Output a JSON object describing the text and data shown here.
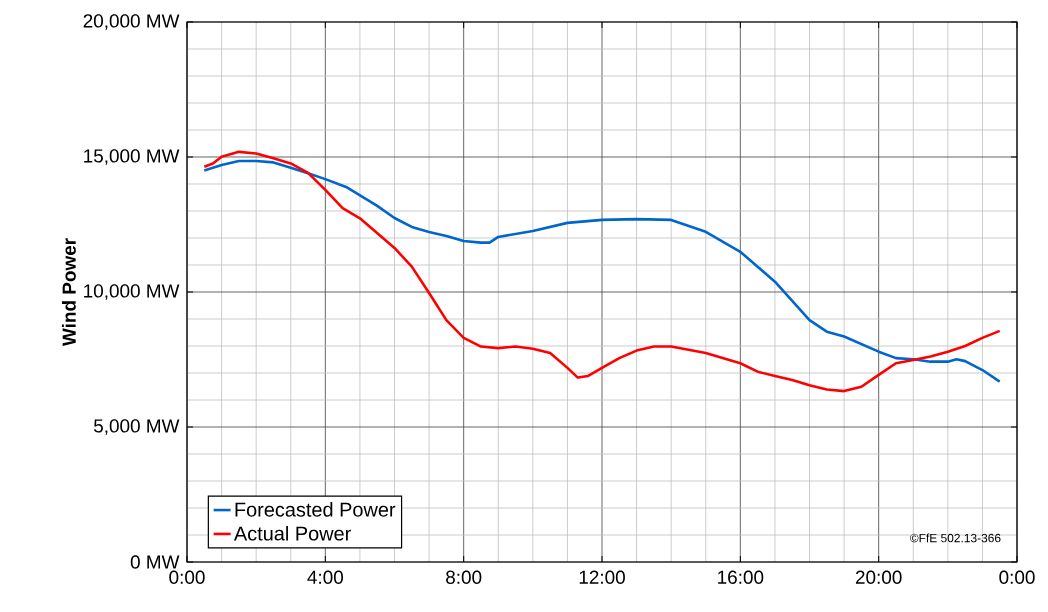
{
  "chart_data": {
    "type": "line",
    "ylabel": "Wind Power",
    "series": [
      {
        "name": "Forecasted Power",
        "color": "#0066cc",
        "x": [
          0.5,
          1,
          1.5,
          2,
          2.5,
          3,
          3.5,
          4,
          4.6,
          5.5,
          6,
          6.5,
          7,
          7.5,
          8,
          8.5,
          8.75,
          9,
          10,
          11,
          12,
          13,
          14,
          15,
          16,
          17,
          18,
          18.5,
          19,
          20,
          20.5,
          21,
          21.5,
          22,
          22.25,
          22.5,
          23,
          23.5
        ],
        "values": [
          14500,
          14700,
          14850,
          14850,
          14800,
          14600,
          14400,
          14180,
          13890,
          13190,
          12740,
          12410,
          12220,
          12070,
          11890,
          11830,
          11830,
          12040,
          12260,
          12560,
          12670,
          12700,
          12670,
          12230,
          11490,
          10380,
          8960,
          8530,
          8350,
          7790,
          7550,
          7510,
          7420,
          7420,
          7510,
          7440,
          7110,
          6680
        ]
      },
      {
        "name": "Actual Power",
        "color": "#ff0000",
        "x": [
          0.5,
          0.75,
          1,
          1.5,
          2,
          2.5,
          3,
          3.5,
          4,
          4.5,
          5,
          5.5,
          6,
          6.5,
          7,
          7.5,
          8,
          8.5,
          9,
          9.5,
          10,
          10.5,
          11,
          11.3,
          11.6,
          12,
          12.5,
          13,
          13.5,
          14,
          15,
          16,
          16.5,
          17,
          17.5,
          18,
          18.5,
          19,
          19.5,
          20,
          20.5,
          21,
          21.5,
          22,
          22.5,
          23,
          23.5
        ],
        "values": [
          14640,
          14760,
          15010,
          15190,
          15130,
          14950,
          14760,
          14410,
          13780,
          13110,
          12730,
          12180,
          11630,
          10940,
          9960,
          8960,
          8300,
          7980,
          7920,
          7980,
          7900,
          7740,
          7190,
          6830,
          6890,
          7190,
          7550,
          7830,
          7980,
          7980,
          7740,
          7360,
          7050,
          6890,
          6740,
          6550,
          6390,
          6330,
          6490,
          6930,
          7360,
          7480,
          7610,
          7790,
          8000,
          8300,
          8560
        ]
      }
    ],
    "xlim": [
      0,
      24
    ],
    "ylim": [
      0,
      20000
    ],
    "xticks": [
      {
        "value": 0,
        "label": "0:00"
      },
      {
        "value": 1,
        "label": null
      },
      {
        "value": 2,
        "label": null
      },
      {
        "value": 3,
        "label": null
      },
      {
        "value": 4,
        "label": "4:00"
      },
      {
        "value": 5,
        "label": null
      },
      {
        "value": 6,
        "label": null
      },
      {
        "value": 7,
        "label": null
      },
      {
        "value": 8,
        "label": "8:00"
      },
      {
        "value": 9,
        "label": null
      },
      {
        "value": 10,
        "label": null
      },
      {
        "value": 11,
        "label": null
      },
      {
        "value": 12,
        "label": "12:00"
      },
      {
        "value": 13,
        "label": null
      },
      {
        "value": 14,
        "label": null
      },
      {
        "value": 15,
        "label": null
      },
      {
        "value": 16,
        "label": "16:00"
      },
      {
        "value": 17,
        "label": null
      },
      {
        "value": 18,
        "label": null
      },
      {
        "value": 19,
        "label": null
      },
      {
        "value": 20,
        "label": "20:00"
      },
      {
        "value": 21,
        "label": null
      },
      {
        "value": 22,
        "label": null
      },
      {
        "value": 23,
        "label": null
      },
      {
        "value": 24,
        "label": "0:00"
      }
    ],
    "yticks": [
      {
        "value": 0,
        "label": "0 MW"
      },
      {
        "value": 1000,
        "label": null
      },
      {
        "value": 2000,
        "label": null
      },
      {
        "value": 3000,
        "label": null
      },
      {
        "value": 4000,
        "label": null
      },
      {
        "value": 5000,
        "label": "5,000 MW"
      },
      {
        "value": 6000,
        "label": null
      },
      {
        "value": 7000,
        "label": null
      },
      {
        "value": 8000,
        "label": null
      },
      {
        "value": 9000,
        "label": null
      },
      {
        "value": 10000,
        "label": "10,000 MW"
      },
      {
        "value": 11000,
        "label": null
      },
      {
        "value": 12000,
        "label": null
      },
      {
        "value": 13000,
        "label": null
      },
      {
        "value": 14000,
        "label": null
      },
      {
        "value": 15000,
        "label": "15,000 MW"
      },
      {
        "value": 16000,
        "label": null
      },
      {
        "value": 17000,
        "label": null
      },
      {
        "value": 18000,
        "label": null
      },
      {
        "value": 19000,
        "label": null
      },
      {
        "value": 20000,
        "label": "20,000 MW"
      }
    ],
    "grid": true,
    "legend": "bottom left",
    "marker": "none",
    "line_style": "solid",
    "annotations": [
      "©FfE 502.13-366"
    ]
  }
}
